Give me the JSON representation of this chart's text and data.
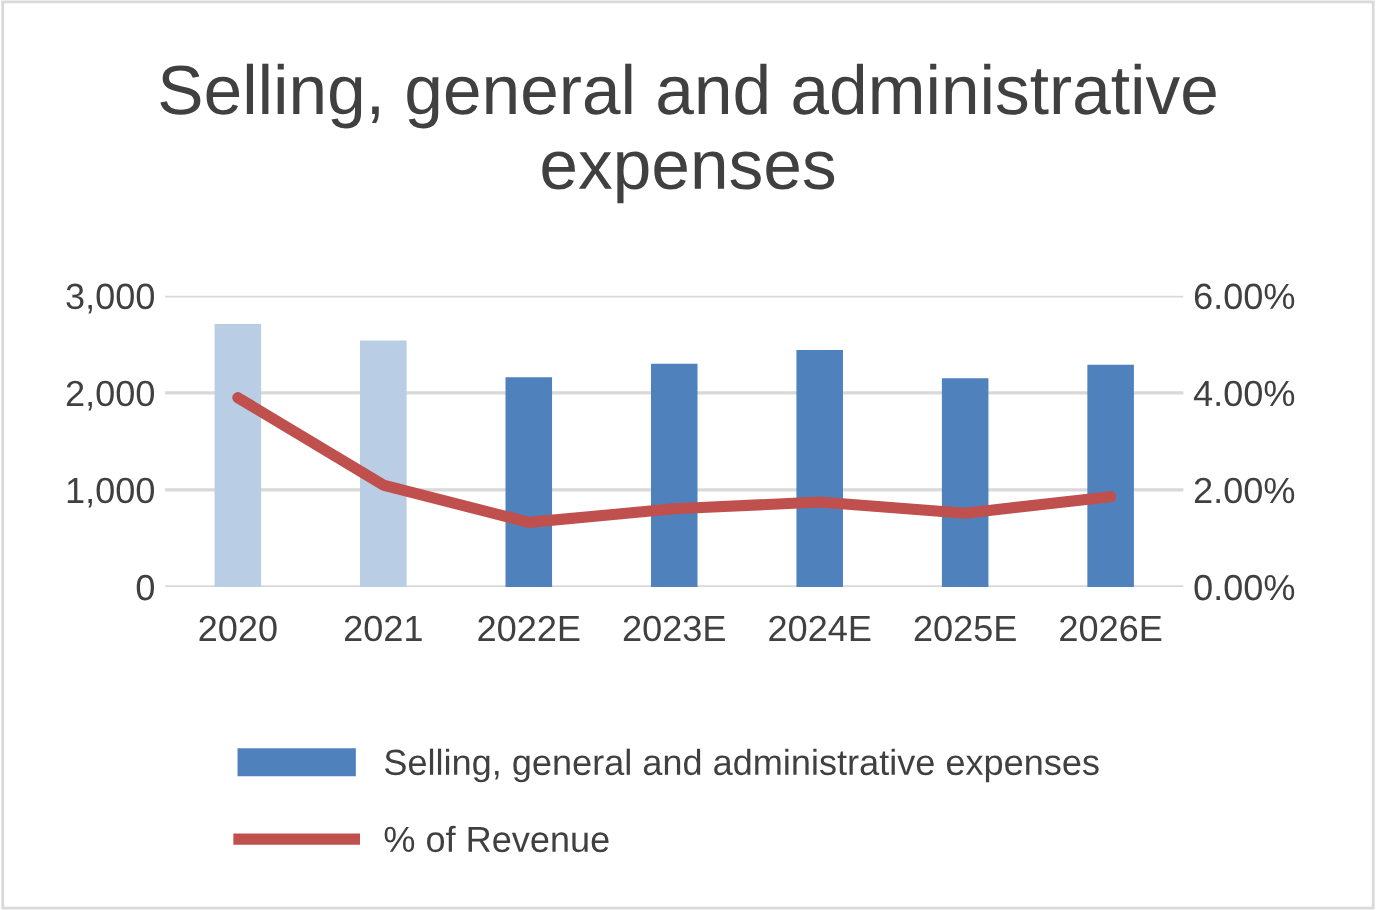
{
  "chart_data": {
    "type": "bar",
    "title": "Selling, general and administrative expenses",
    "categories": [
      "2020",
      "2021",
      "2022E",
      "2023E",
      "2024E",
      "2025E",
      "2026E"
    ],
    "series": [
      {
        "name": "Selling, general and administrative expenses",
        "color": "#4f81bd",
        "colors": [
          "#b9cde5",
          "#b9cde5",
          "#4f81bd",
          "#4f81bd",
          "#4f81bd",
          "#4f81bd",
          "#4f81bd"
        ],
        "values": [
          2710,
          2540,
          2160,
          2300,
          2440,
          2150,
          2290
        ]
      },
      {
        "name": "% of Revenue",
        "type": "line",
        "axis": "y2",
        "color": "#c0504d",
        "values": [
          3.9,
          2.1,
          1.33,
          1.61,
          1.75,
          1.52,
          1.86
        ]
      }
    ],
    "ylim": [
      0,
      3000
    ],
    "yticks": [
      {
        "value": 0,
        "label": "0"
      },
      {
        "value": 1000,
        "label": "1,000"
      },
      {
        "value": 2000,
        "label": "2,000"
      },
      {
        "value": 3000,
        "label": "3,000"
      }
    ],
    "y2lim": [
      0,
      6
    ],
    "y2ticks": [
      {
        "value": 0,
        "label": "0.00%"
      },
      {
        "value": 2,
        "label": "2.00%"
      },
      {
        "value": 4,
        "label": "4.00%"
      },
      {
        "value": 6,
        "label": "6.00%"
      }
    ],
    "grid": "y",
    "legend": "bottom",
    "marker": "none"
  }
}
